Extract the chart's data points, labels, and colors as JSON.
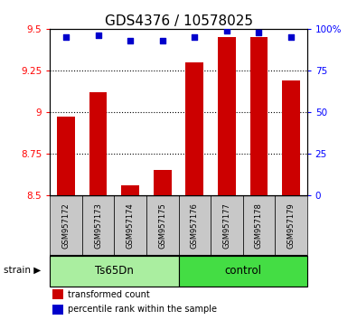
{
  "title": "GDS4376 / 10578025",
  "samples": [
    "GSM957172",
    "GSM957173",
    "GSM957174",
    "GSM957175",
    "GSM957176",
    "GSM957177",
    "GSM957178",
    "GSM957179"
  ],
  "red_values": [
    8.97,
    9.12,
    8.56,
    8.65,
    9.3,
    9.45,
    9.45,
    9.19
  ],
  "blue_values": [
    95,
    96,
    93,
    93,
    95,
    99,
    98,
    95
  ],
  "ylim_left": [
    8.5,
    9.5
  ],
  "ylim_right": [
    0,
    100
  ],
  "yticks_left": [
    8.5,
    8.75,
    9.0,
    9.25,
    9.5
  ],
  "ytick_labels_left": [
    "8.5",
    "8.75",
    "9",
    "9.25",
    "9.5"
  ],
  "yticks_right": [
    0,
    25,
    50,
    75,
    100
  ],
  "ytick_labels_right": [
    "0",
    "25",
    "50",
    "75",
    "100%"
  ],
  "gridlines_at": [
    8.75,
    9.0,
    9.25
  ],
  "bar_color": "#CC0000",
  "dot_color": "#0000CC",
  "bar_base": 8.5,
  "group_ts_color": "#AAEEA0",
  "group_ctrl_color": "#44DD44",
  "legend_items": [
    {
      "label": "transformed count",
      "color": "#CC0000"
    },
    {
      "label": "percentile rank within the sample",
      "color": "#0000CC"
    }
  ],
  "sample_box_color": "#C8C8C8"
}
